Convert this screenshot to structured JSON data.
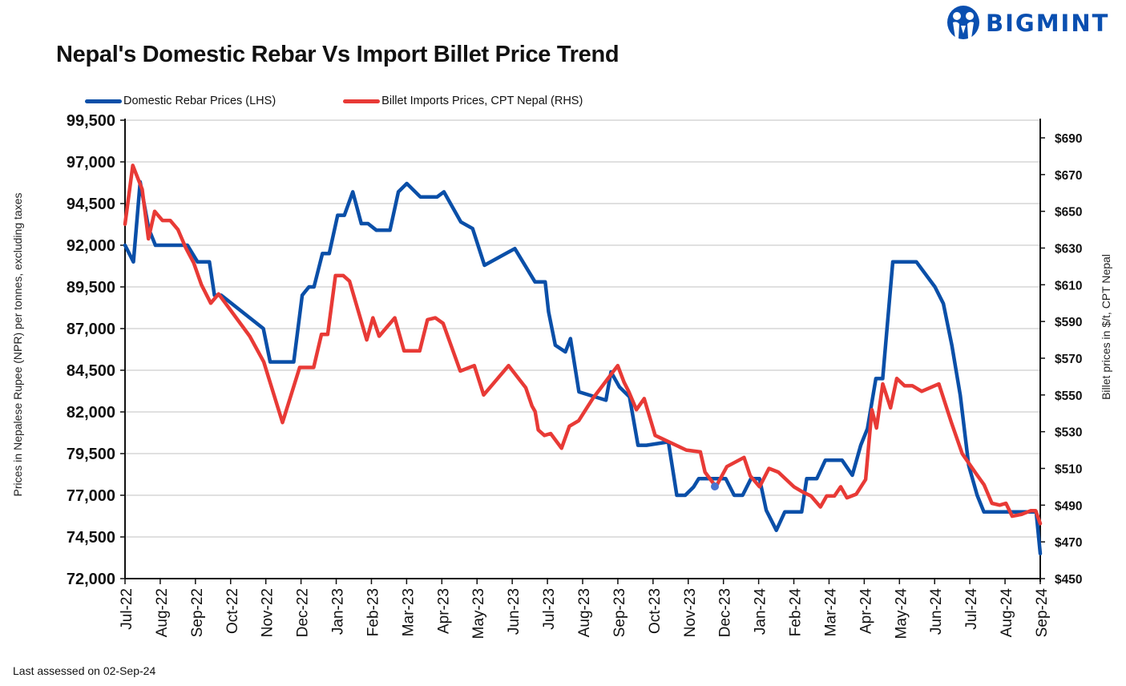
{
  "header": {
    "title": "Nepal's Domestic Rebar Vs Import Billet Price Trend",
    "logo_text": "BIGMINT",
    "logo_color": "#0a4fb0"
  },
  "footer": {
    "note": "Last assessed on 02-Sep-24"
  },
  "chart_data": {
    "type": "line",
    "title": "Nepal's Domestic Rebar Vs Import Billet Price Trend",
    "legend_position": "top-left",
    "grid": true,
    "x_ticks": [
      "Jul-22",
      "Aug-22",
      "Sep-22",
      "Oct-22",
      "Nov-22",
      "Dec-22",
      "Jan-23",
      "Feb-23",
      "Mar-23",
      "Apr-23",
      "May-23",
      "Jun-23",
      "Jul-23",
      "Aug-23",
      "Sep-23",
      "Oct-23",
      "Nov-23",
      "Dec-23",
      "Jan-24",
      "Feb-24",
      "Mar-24",
      "Apr-24",
      "May-24",
      "Jun-24",
      "Jul-24",
      "Aug-24",
      "Sep-24"
    ],
    "ylabel_left": "Prices in Nepalese Rupee (NPR) per tonnes, excluding taxes",
    "ylabel_right": "Billet prices in $/t, CPT Nepal",
    "ylim_left": [
      72000,
      99500
    ],
    "yticks_left": [
      "72,000",
      "74,500",
      "77,000",
      "79,500",
      "82,000",
      "84,500",
      "87,000",
      "89,500",
      "92,000",
      "94,500",
      "97,000",
      "99,500"
    ],
    "ylim_right": [
      450,
      700
    ],
    "yticks_right": [
      "$450",
      "$470",
      "$490",
      "$510",
      "$530",
      "$550",
      "$570",
      "$590",
      "$610",
      "$630",
      "$650",
      "$670",
      "$690"
    ],
    "series": [
      {
        "name": "Domestic Rebar Prices (LHS)",
        "axis": "left",
        "color": "#0a4fa8",
        "points": [
          [
            0,
            92000
          ],
          [
            0.25,
            91000
          ],
          [
            0.45,
            95800
          ],
          [
            0.7,
            93000
          ],
          [
            0.9,
            92000
          ],
          [
            1.2,
            92000
          ],
          [
            1.5,
            92000
          ],
          [
            1.85,
            92000
          ],
          [
            2.15,
            91000
          ],
          [
            2.5,
            91000
          ],
          [
            2.65,
            89000
          ],
          [
            2.85,
            89000
          ],
          [
            4.1,
            87000
          ],
          [
            4.3,
            85000
          ],
          [
            5.0,
            85000
          ],
          [
            5.25,
            89000
          ],
          [
            5.45,
            89500
          ],
          [
            5.6,
            89500
          ],
          [
            5.85,
            91500
          ],
          [
            6.05,
            91500
          ],
          [
            6.3,
            93800
          ],
          [
            6.5,
            93800
          ],
          [
            6.75,
            95200
          ],
          [
            7.0,
            93300
          ],
          [
            7.2,
            93300
          ],
          [
            7.45,
            92900
          ],
          [
            7.85,
            92900
          ],
          [
            8.1,
            95200
          ],
          [
            8.35,
            95700
          ],
          [
            8.75,
            94900
          ],
          [
            9.25,
            94900
          ],
          [
            9.45,
            95200
          ],
          [
            9.95,
            93400
          ],
          [
            10.3,
            93000
          ],
          [
            10.65,
            90800
          ],
          [
            11.55,
            91800
          ],
          [
            12.15,
            89800
          ],
          [
            12.45,
            89800
          ],
          [
            12.55,
            88000
          ],
          [
            12.75,
            86000
          ],
          [
            13.05,
            85600
          ],
          [
            13.2,
            86400
          ],
          [
            13.45,
            83200
          ],
          [
            14.25,
            82700
          ],
          [
            14.4,
            84400
          ],
          [
            14.65,
            83500
          ],
          [
            14.95,
            82900
          ],
          [
            15.2,
            80000
          ],
          [
            15.45,
            80000
          ],
          [
            16.1,
            80200
          ],
          [
            16.35,
            77000
          ],
          [
            16.6,
            77000
          ],
          [
            16.85,
            77500
          ],
          [
            17.0,
            78000
          ],
          [
            17.8,
            78000
          ],
          [
            18.05,
            77000
          ],
          [
            18.3,
            77000
          ],
          [
            18.55,
            78000
          ],
          [
            18.8,
            78000
          ],
          [
            19.0,
            76100
          ],
          [
            19.3,
            74900
          ],
          [
            19.55,
            76000
          ],
          [
            20.05,
            76000
          ],
          [
            20.2,
            78000
          ],
          [
            20.5,
            78000
          ],
          [
            20.75,
            79100
          ],
          [
            21.25,
            79100
          ],
          [
            21.55,
            78200
          ],
          [
            21.8,
            80000
          ],
          [
            22.0,
            81000
          ],
          [
            22.25,
            84000
          ],
          [
            22.45,
            84000
          ],
          [
            22.75,
            91000
          ],
          [
            23.45,
            91000
          ],
          [
            24.0,
            89500
          ],
          [
            24.25,
            88500
          ],
          [
            24.5,
            86000
          ],
          [
            24.75,
            83000
          ],
          [
            25.0,
            78800
          ],
          [
            25.25,
            77000
          ],
          [
            25.45,
            76000
          ],
          [
            25.7,
            76000
          ],
          [
            26.2,
            76000
          ],
          [
            26.4,
            76000
          ],
          [
            26.6,
            76000
          ],
          [
            26.75,
            76000
          ],
          [
            27.0,
            76000
          ],
          [
            27.12,
            73500
          ]
        ]
      },
      {
        "name": "Billet Imports Prices, CPT Nepal (RHS)",
        "axis": "right",
        "color": "#e83a36",
        "points": [
          [
            0,
            643
          ],
          [
            0.25,
            675
          ],
          [
            0.55,
            662
          ],
          [
            0.75,
            635
          ],
          [
            0.95,
            650
          ],
          [
            1.2,
            645
          ],
          [
            1.45,
            645
          ],
          [
            1.7,
            640
          ],
          [
            1.95,
            630
          ],
          [
            2.2,
            622
          ],
          [
            2.45,
            610
          ],
          [
            2.75,
            600
          ],
          [
            3.0,
            605
          ],
          [
            3.35,
            597
          ],
          [
            4.0,
            582
          ],
          [
            4.45,
            568
          ],
          [
            5.05,
            535
          ],
          [
            5.6,
            565
          ],
          [
            6.05,
            565
          ],
          [
            6.3,
            583
          ],
          [
            6.5,
            583
          ],
          [
            6.75,
            615
          ],
          [
            7.0,
            615
          ],
          [
            7.2,
            612
          ],
          [
            7.75,
            580
          ],
          [
            7.95,
            592
          ],
          [
            8.15,
            582
          ],
          [
            8.65,
            592
          ],
          [
            8.95,
            574
          ],
          [
            9.45,
            574
          ],
          [
            9.7,
            591
          ],
          [
            9.95,
            592
          ],
          [
            10.2,
            589
          ],
          [
            10.75,
            563
          ],
          [
            11.2,
            566
          ],
          [
            11.5,
            550
          ],
          [
            12.3,
            566
          ],
          [
            12.85,
            554
          ],
          [
            13.05,
            544
          ],
          [
            13.15,
            541
          ],
          [
            13.25,
            531
          ],
          [
            13.45,
            528
          ],
          [
            13.65,
            529
          ],
          [
            14.0,
            521
          ],
          [
            14.25,
            533
          ],
          [
            14.55,
            536
          ],
          [
            15.0,
            548
          ],
          [
            15.8,
            566
          ],
          [
            16.0,
            557
          ],
          [
            16.15,
            552
          ],
          [
            16.4,
            542
          ],
          [
            16.65,
            548
          ],
          [
            17.0,
            528
          ],
          [
            18.0,
            520
          ],
          [
            18.45,
            519
          ],
          [
            18.6,
            508
          ],
          [
            18.95,
            500
          ],
          [
            19.3,
            511
          ],
          [
            19.85,
            516
          ],
          [
            20.05,
            506
          ],
          [
            20.35,
            500
          ],
          [
            20.65,
            510
          ],
          [
            20.95,
            508
          ],
          [
            21.45,
            500
          ],
          [
            21.75,
            497
          ],
          [
            22.0,
            495
          ],
          [
            22.3,
            489
          ],
          [
            22.5,
            495
          ],
          [
            22.75,
            495
          ],
          [
            22.95,
            500
          ],
          [
            23.15,
            494
          ],
          [
            23.45,
            496
          ],
          [
            23.75,
            504
          ],
          [
            23.95,
            542
          ],
          [
            24.1,
            532
          ],
          [
            24.3,
            556
          ],
          [
            24.55,
            543
          ],
          [
            24.75,
            559
          ],
          [
            25.0,
            555
          ],
          [
            25.25,
            555
          ],
          [
            25.55,
            552
          ],
          [
            26.1,
            556
          ],
          [
            26.5,
            535
          ],
          [
            26.85,
            518
          ],
          [
            27.3,
            507
          ],
          [
            27.55,
            501
          ],
          [
            27.8,
            491
          ],
          [
            28.05,
            490
          ],
          [
            28.25,
            491
          ],
          [
            28.45,
            484
          ],
          [
            28.75,
            485
          ],
          [
            29.05,
            487
          ],
          [
            29.2,
            487
          ],
          [
            29.35,
            480
          ]
        ]
      }
    ],
    "annotations": [
      {
        "type": "marker",
        "series": "Domestic Rebar Prices (LHS)",
        "x_label": "Dec-23",
        "note": "highlighted point near late Nov-23",
        "value": 77500
      }
    ]
  },
  "legend": {
    "items": [
      {
        "label": "Domestic Rebar Prices (LHS)",
        "color": "#0a4fa8"
      },
      {
        "label": "Billet Imports Prices, CPT Nepal (RHS)",
        "color": "#e83a36"
      }
    ]
  }
}
